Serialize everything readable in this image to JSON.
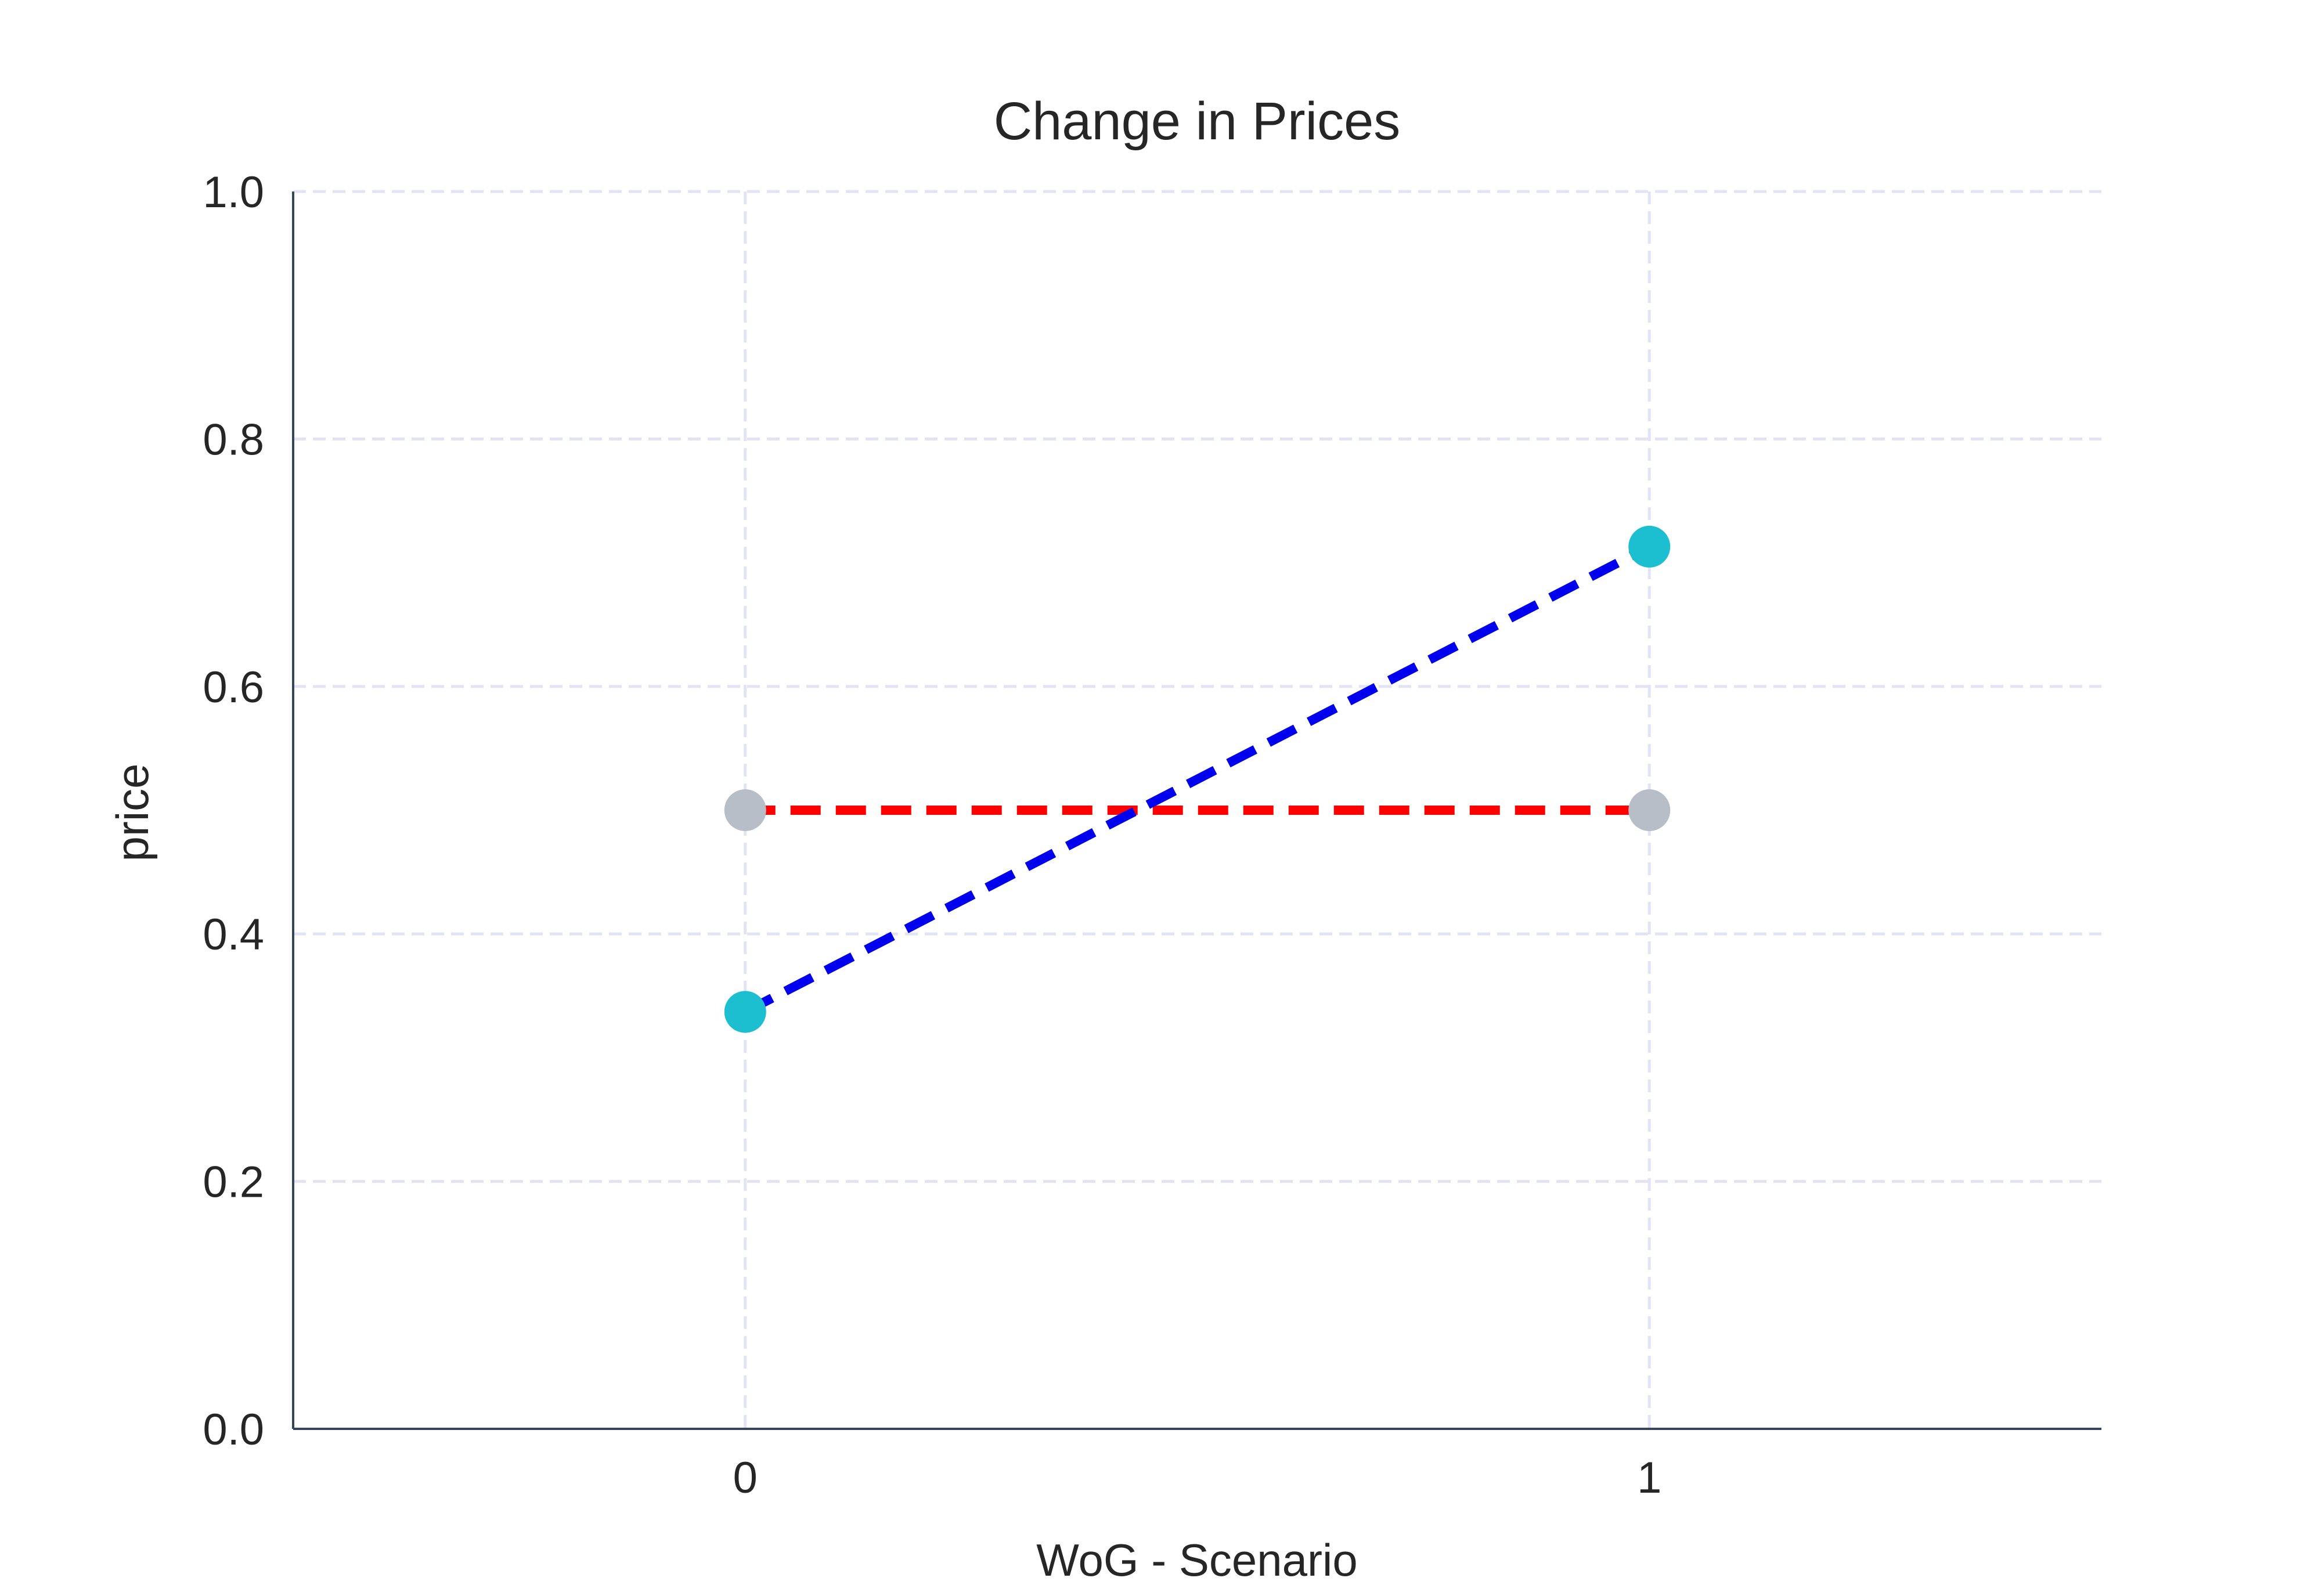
{
  "chart_data": {
    "type": "line",
    "title": "Change in Prices",
    "xlabel": "WoG - Scenario",
    "ylabel": "price",
    "x": [
      0,
      1
    ],
    "xticks": [
      "0",
      "1"
    ],
    "xlim": [
      -0.5,
      1.5
    ],
    "ylim": [
      0.0,
      1.0
    ],
    "yticks": [
      "0.0",
      "0.2",
      "0.4",
      "0.6",
      "0.8",
      "1.0"
    ],
    "grid": true,
    "legend": false,
    "series": [
      {
        "values": [
          0.5,
          0.5
        ],
        "line_color": "#ff0000",
        "marker_color": "#b8bec7",
        "line_style": "dashed"
      },
      {
        "values": [
          0.337,
          0.713
        ],
        "line_color": "#0000ee",
        "marker_color": "#1cbfcf",
        "line_style": "dashed"
      }
    ]
  }
}
